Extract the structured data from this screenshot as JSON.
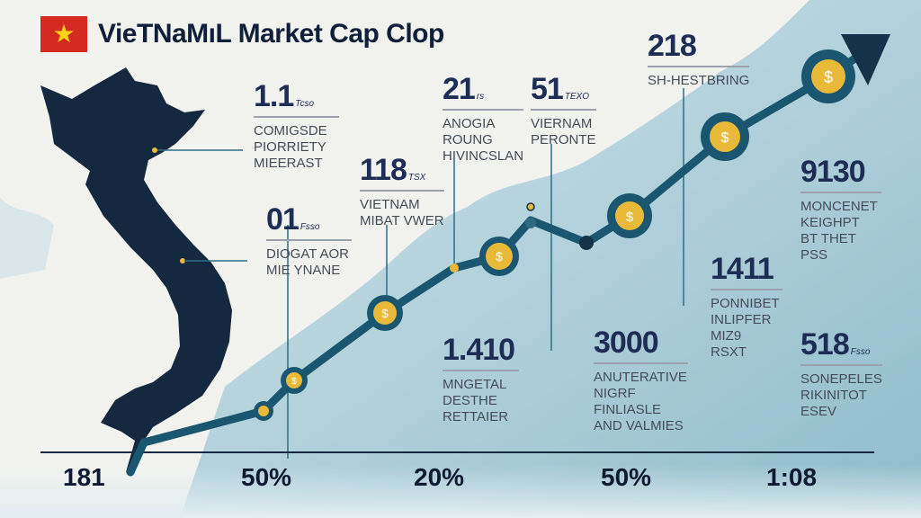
{
  "title": "VieTNaMıL Market Cap Clop",
  "colors": {
    "navy": "#14324a",
    "teal": "#1f5e78",
    "coin": "#e9b93a",
    "flag_red": "#d42a20",
    "flag_star": "#f7d417"
  },
  "callouts": [
    {
      "value": "1.1",
      "unit": "Tcso",
      "lines": [
        "COMIGSDE",
        "PIORRIETY",
        "MIEERAST"
      ]
    },
    {
      "value": "118",
      "unit": "TSX",
      "lines": [
        "VIETNAM",
        "MIBAT VWER"
      ]
    },
    {
      "value": "01",
      "unit": "Fsso",
      "lines": [
        "DIOGAT AOR",
        "MIE YNANE"
      ]
    },
    {
      "value": "21",
      "unit": "rs",
      "lines": [
        "ANOGIA",
        "ROUNG",
        "HIVINCSLAN"
      ]
    },
    {
      "value": "51",
      "unit": "TEXO",
      "lines": [
        "VIERNAM",
        "PERONTE"
      ]
    },
    {
      "value": "218",
      "unit": "",
      "lines": [
        "SH-HESTBRING"
      ]
    },
    {
      "value": "9130",
      "unit": "",
      "lines": [
        "MONCENET",
        "KEIGHPT",
        "BT THET",
        "PSS"
      ]
    },
    {
      "value": "1411",
      "unit": "",
      "lines": [
        "PONNIBET",
        "INLIPFER",
        "MIZ9",
        "RSXT"
      ]
    },
    {
      "value": "1.410",
      "unit": "",
      "lines": [
        "MNGETAL",
        "DESTHE",
        "RETTAIER"
      ]
    },
    {
      "value": "3000",
      "unit": "",
      "lines": [
        "ANUTERATIVE",
        "NIGRF",
        "FINLIASLE",
        "AND VALMIES"
      ]
    },
    {
      "value": "518",
      "unit": "Fsso",
      "lines": [
        "SONEPELES",
        "RIKINITOT",
        "ESEV"
      ]
    }
  ],
  "axis_labels": [
    "181",
    "50%",
    "20%",
    "50%",
    "1:08"
  ]
}
